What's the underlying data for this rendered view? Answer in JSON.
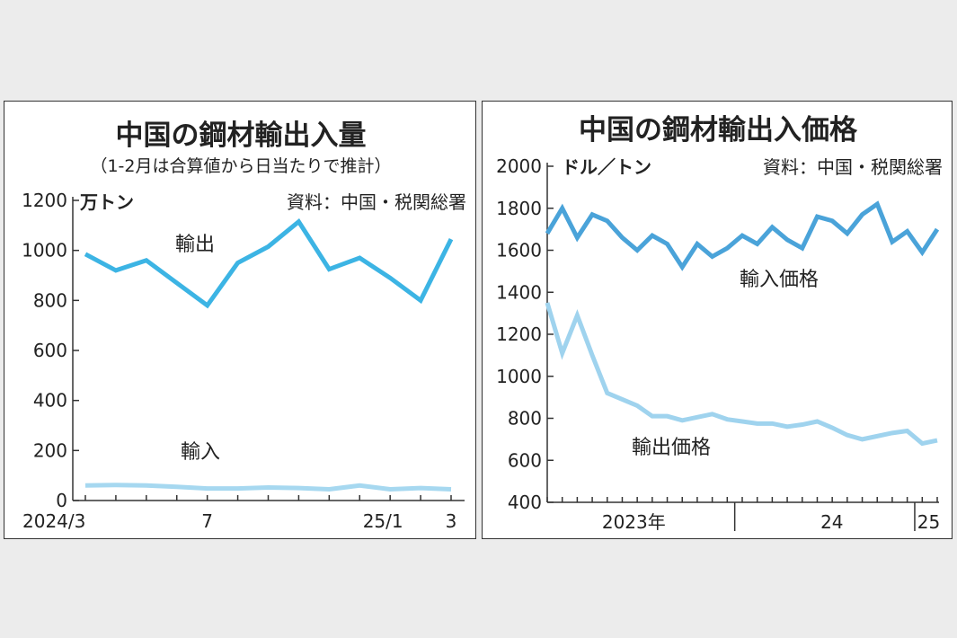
{
  "chart_data": [
    {
      "type": "line",
      "title": "中国の鋼材輸出入量",
      "subtitle": "（1-2月は合算値から日当たりで推計）",
      "unit": "万トン",
      "source": "資料：中国・税関総署",
      "ylim": [
        0,
        1200
      ],
      "y_ticks": [
        "0",
        "200",
        "400",
        "600",
        "800",
        "1000",
        "1200"
      ],
      "x_tick_labels": [
        "2024/3",
        "7",
        "25/1",
        "3"
      ],
      "x": [
        "2024/3",
        "2024/4",
        "2024/5",
        "2024/6",
        "2024/7",
        "2024/8",
        "2024/9",
        "2024/10",
        "2024/11",
        "2024/12",
        "2025/1",
        "2025/2",
        "2025/3"
      ],
      "series": [
        {
          "name": "輸出",
          "color": "#3cb4e4",
          "values": [
            985,
            920,
            960,
            870,
            780,
            950,
            1015,
            1115,
            925,
            970,
            890,
            800,
            1045
          ]
        },
        {
          "name": "輸入",
          "color": "#a6d8f0",
          "values": [
            60,
            62,
            60,
            55,
            48,
            48,
            52,
            50,
            45,
            60,
            45,
            50,
            45
          ]
        }
      ]
    },
    {
      "type": "line",
      "title": "中国の鋼材輸出入価格",
      "unit": "ドル／トン",
      "source": "資料：中国・税関総署",
      "ylim": [
        400,
        2000
      ],
      "y_ticks": [
        "400",
        "600",
        "800",
        "1000",
        "1200",
        "1400",
        "1600",
        "1800",
        "2000"
      ],
      "x_tick_labels": [
        "2023年",
        "24",
        "25"
      ],
      "x_range": [
        "2022/12",
        "2025/3"
      ],
      "series": [
        {
          "name": "輸入価格",
          "color": "#4aa3d9",
          "values": [
            1680,
            1800,
            1660,
            1770,
            1740,
            1660,
            1600,
            1670,
            1630,
            1520,
            1630,
            1570,
            1610,
            1670,
            1630,
            1710,
            1650,
            1610,
            1760,
            1740,
            1680,
            1770,
            1820,
            1640,
            1690,
            1590,
            1700
          ]
        },
        {
          "name": "輸出価格",
          "color": "#9fd3ee",
          "values": [
            1350,
            1110,
            1290,
            1100,
            920,
            890,
            860,
            810,
            810,
            790,
            805,
            820,
            795,
            785,
            775,
            775,
            760,
            770,
            785,
            755,
            720,
            700,
            715,
            730,
            740,
            680,
            695
          ]
        }
      ]
    }
  ]
}
